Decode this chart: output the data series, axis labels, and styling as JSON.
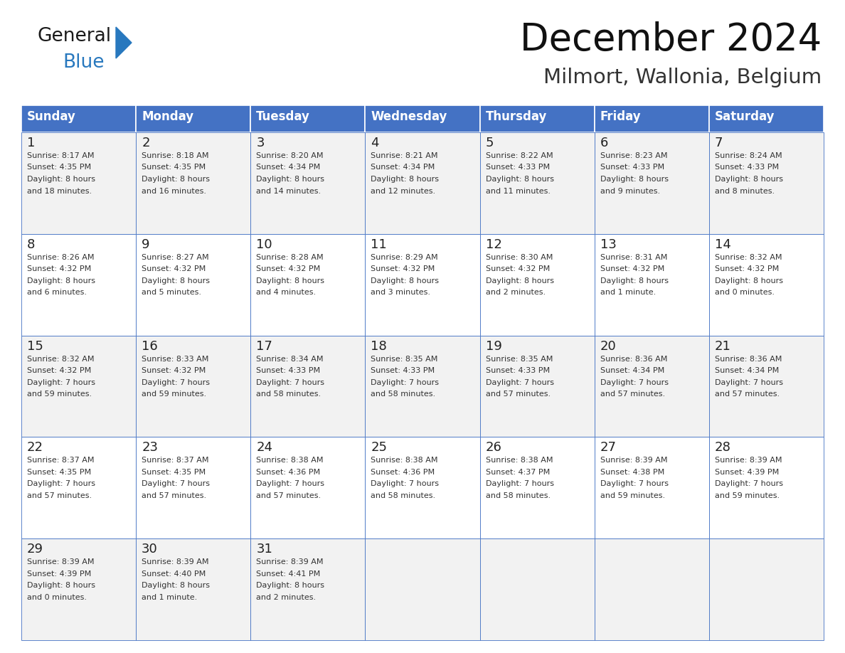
{
  "title": "December 2024",
  "subtitle": "Milmort, Wallonia, Belgium",
  "header_color": "#4472C4",
  "header_text_color": "#FFFFFF",
  "cell_bg_even": "#F2F2F2",
  "cell_bg_odd": "#FFFFFF",
  "border_color": "#4472C4",
  "text_color": "#333333",
  "day_num_color": "#222222",
  "days_of_week": [
    "Sunday",
    "Monday",
    "Tuesday",
    "Wednesday",
    "Thursday",
    "Friday",
    "Saturday"
  ],
  "weeks": [
    [
      {
        "day": 1,
        "sunrise": "8:17 AM",
        "sunset": "4:35 PM",
        "daylight_h": "8 hours",
        "daylight_m": "and 18 minutes."
      },
      {
        "day": 2,
        "sunrise": "8:18 AM",
        "sunset": "4:35 PM",
        "daylight_h": "8 hours",
        "daylight_m": "and 16 minutes."
      },
      {
        "day": 3,
        "sunrise": "8:20 AM",
        "sunset": "4:34 PM",
        "daylight_h": "8 hours",
        "daylight_m": "and 14 minutes."
      },
      {
        "day": 4,
        "sunrise": "8:21 AM",
        "sunset": "4:34 PM",
        "daylight_h": "8 hours",
        "daylight_m": "and 12 minutes."
      },
      {
        "day": 5,
        "sunrise": "8:22 AM",
        "sunset": "4:33 PM",
        "daylight_h": "8 hours",
        "daylight_m": "and 11 minutes."
      },
      {
        "day": 6,
        "sunrise": "8:23 AM",
        "sunset": "4:33 PM",
        "daylight_h": "8 hours",
        "daylight_m": "and 9 minutes."
      },
      {
        "day": 7,
        "sunrise": "8:24 AM",
        "sunset": "4:33 PM",
        "daylight_h": "8 hours",
        "daylight_m": "and 8 minutes."
      }
    ],
    [
      {
        "day": 8,
        "sunrise": "8:26 AM",
        "sunset": "4:32 PM",
        "daylight_h": "8 hours",
        "daylight_m": "and 6 minutes."
      },
      {
        "day": 9,
        "sunrise": "8:27 AM",
        "sunset": "4:32 PM",
        "daylight_h": "8 hours",
        "daylight_m": "and 5 minutes."
      },
      {
        "day": 10,
        "sunrise": "8:28 AM",
        "sunset": "4:32 PM",
        "daylight_h": "8 hours",
        "daylight_m": "and 4 minutes."
      },
      {
        "day": 11,
        "sunrise": "8:29 AM",
        "sunset": "4:32 PM",
        "daylight_h": "8 hours",
        "daylight_m": "and 3 minutes."
      },
      {
        "day": 12,
        "sunrise": "8:30 AM",
        "sunset": "4:32 PM",
        "daylight_h": "8 hours",
        "daylight_m": "and 2 minutes."
      },
      {
        "day": 13,
        "sunrise": "8:31 AM",
        "sunset": "4:32 PM",
        "daylight_h": "8 hours",
        "daylight_m": "and 1 minute."
      },
      {
        "day": 14,
        "sunrise": "8:32 AM",
        "sunset": "4:32 PM",
        "daylight_h": "8 hours",
        "daylight_m": "and 0 minutes."
      }
    ],
    [
      {
        "day": 15,
        "sunrise": "8:32 AM",
        "sunset": "4:32 PM",
        "daylight_h": "7 hours",
        "daylight_m": "and 59 minutes."
      },
      {
        "day": 16,
        "sunrise": "8:33 AM",
        "sunset": "4:32 PM",
        "daylight_h": "7 hours",
        "daylight_m": "and 59 minutes."
      },
      {
        "day": 17,
        "sunrise": "8:34 AM",
        "sunset": "4:33 PM",
        "daylight_h": "7 hours",
        "daylight_m": "and 58 minutes."
      },
      {
        "day": 18,
        "sunrise": "8:35 AM",
        "sunset": "4:33 PM",
        "daylight_h": "7 hours",
        "daylight_m": "and 58 minutes."
      },
      {
        "day": 19,
        "sunrise": "8:35 AM",
        "sunset": "4:33 PM",
        "daylight_h": "7 hours",
        "daylight_m": "and 57 minutes."
      },
      {
        "day": 20,
        "sunrise": "8:36 AM",
        "sunset": "4:34 PM",
        "daylight_h": "7 hours",
        "daylight_m": "and 57 minutes."
      },
      {
        "day": 21,
        "sunrise": "8:36 AM",
        "sunset": "4:34 PM",
        "daylight_h": "7 hours",
        "daylight_m": "and 57 minutes."
      }
    ],
    [
      {
        "day": 22,
        "sunrise": "8:37 AM",
        "sunset": "4:35 PM",
        "daylight_h": "7 hours",
        "daylight_m": "and 57 minutes."
      },
      {
        "day": 23,
        "sunrise": "8:37 AM",
        "sunset": "4:35 PM",
        "daylight_h": "7 hours",
        "daylight_m": "and 57 minutes."
      },
      {
        "day": 24,
        "sunrise": "8:38 AM",
        "sunset": "4:36 PM",
        "daylight_h": "7 hours",
        "daylight_m": "and 57 minutes."
      },
      {
        "day": 25,
        "sunrise": "8:38 AM",
        "sunset": "4:36 PM",
        "daylight_h": "7 hours",
        "daylight_m": "and 58 minutes."
      },
      {
        "day": 26,
        "sunrise": "8:38 AM",
        "sunset": "4:37 PM",
        "daylight_h": "7 hours",
        "daylight_m": "and 58 minutes."
      },
      {
        "day": 27,
        "sunrise": "8:39 AM",
        "sunset": "4:38 PM",
        "daylight_h": "7 hours",
        "daylight_m": "and 59 minutes."
      },
      {
        "day": 28,
        "sunrise": "8:39 AM",
        "sunset": "4:39 PM",
        "daylight_h": "7 hours",
        "daylight_m": "and 59 minutes."
      }
    ],
    [
      {
        "day": 29,
        "sunrise": "8:39 AM",
        "sunset": "4:39 PM",
        "daylight_h": "8 hours",
        "daylight_m": "and 0 minutes."
      },
      {
        "day": 30,
        "sunrise": "8:39 AM",
        "sunset": "4:40 PM",
        "daylight_h": "8 hours",
        "daylight_m": "and 1 minute."
      },
      {
        "day": 31,
        "sunrise": "8:39 AM",
        "sunset": "4:41 PM",
        "daylight_h": "8 hours",
        "daylight_m": "and 2 minutes."
      },
      null,
      null,
      null,
      null
    ]
  ],
  "logo_color_general": "#1a1a1a",
  "logo_color_blue": "#2878BE",
  "logo_triangle_color": "#2878BE",
  "figsize": [
    11.88,
    9.18
  ],
  "dpi": 100
}
